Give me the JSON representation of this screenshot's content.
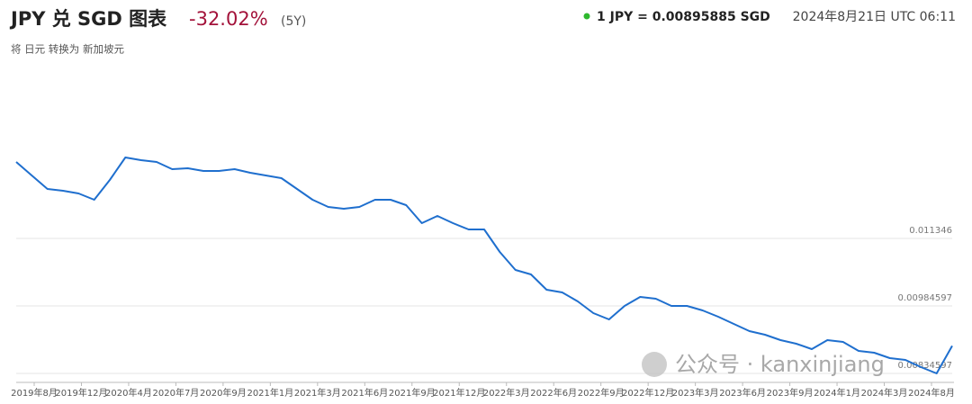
{
  "chart_data": {
    "type": "line",
    "title": "JPY 兑 SGD 图表",
    "change": "-32.02%",
    "period": "(5Y)",
    "subtitle": "将 日元 转换为 新加坡元",
    "rate": "1 JPY = 0.00895885 SGD",
    "timestamp": "2024年8月21日 UTC 06:11",
    "annotations": [
      "公众号 · kanxinjiang"
    ],
    "categories": [
      "2019年8月",
      null,
      null,
      null,
      "2019年12月",
      null,
      null,
      null,
      "2020年4月",
      null,
      null,
      "2020年7月",
      null,
      "2020年9月",
      null,
      null,
      null,
      "2021年1月",
      null,
      "2021年3月",
      null,
      null,
      "2021年6月",
      null,
      null,
      "2021年9月",
      null,
      null,
      "2021年12月",
      null,
      null,
      "2022年3月",
      null,
      null,
      "2022年6月",
      null,
      null,
      "2022年9月",
      null,
      null,
      "2022年12月",
      null,
      null,
      "2023年3月",
      null,
      null,
      "2023年6月",
      null,
      null,
      "2023年9月",
      null,
      null,
      null,
      "2024年1月",
      null,
      "2024年3月",
      null,
      null,
      null,
      null,
      "2024年8月"
    ],
    "series": [
      {
        "color": "#1f6fce",
        "values": [
          0.013046,
          0.012746,
          0.012446,
          0.012406,
          0.012346,
          0.012206,
          0.012646,
          0.013146,
          0.013086,
          0.013046,
          0.012886,
          0.012906,
          0.012846,
          0.012846,
          0.012886,
          0.012806,
          0.012746,
          0.012686,
          0.012446,
          0.012206,
          0.012046,
          0.012006,
          0.012046,
          0.012206,
          0.012206,
          0.012086,
          0.011686,
          0.011846,
          0.011686,
          0.011546,
          0.011546,
          0.011046,
          0.010646,
          0.010546,
          0.010206,
          0.010146,
          0.009946,
          0.009686,
          0.009546,
          0.009846,
          0.010046,
          0.010006,
          0.009846,
          0.009846,
          0.009746,
          0.009606,
          0.009446,
          0.009286,
          0.009206,
          0.009086,
          0.009006,
          0.008886,
          0.009086,
          0.009046,
          0.008846,
          0.008806,
          0.008686,
          0.008646,
          0.008486,
          0.008346,
          0.00895885
        ]
      }
    ],
    "ylim": [
      0.00814597,
      0.01374597
    ],
    "yticks": [
      0.00834597,
      0.00984597,
      0.011346
    ],
    "grid": true
  }
}
